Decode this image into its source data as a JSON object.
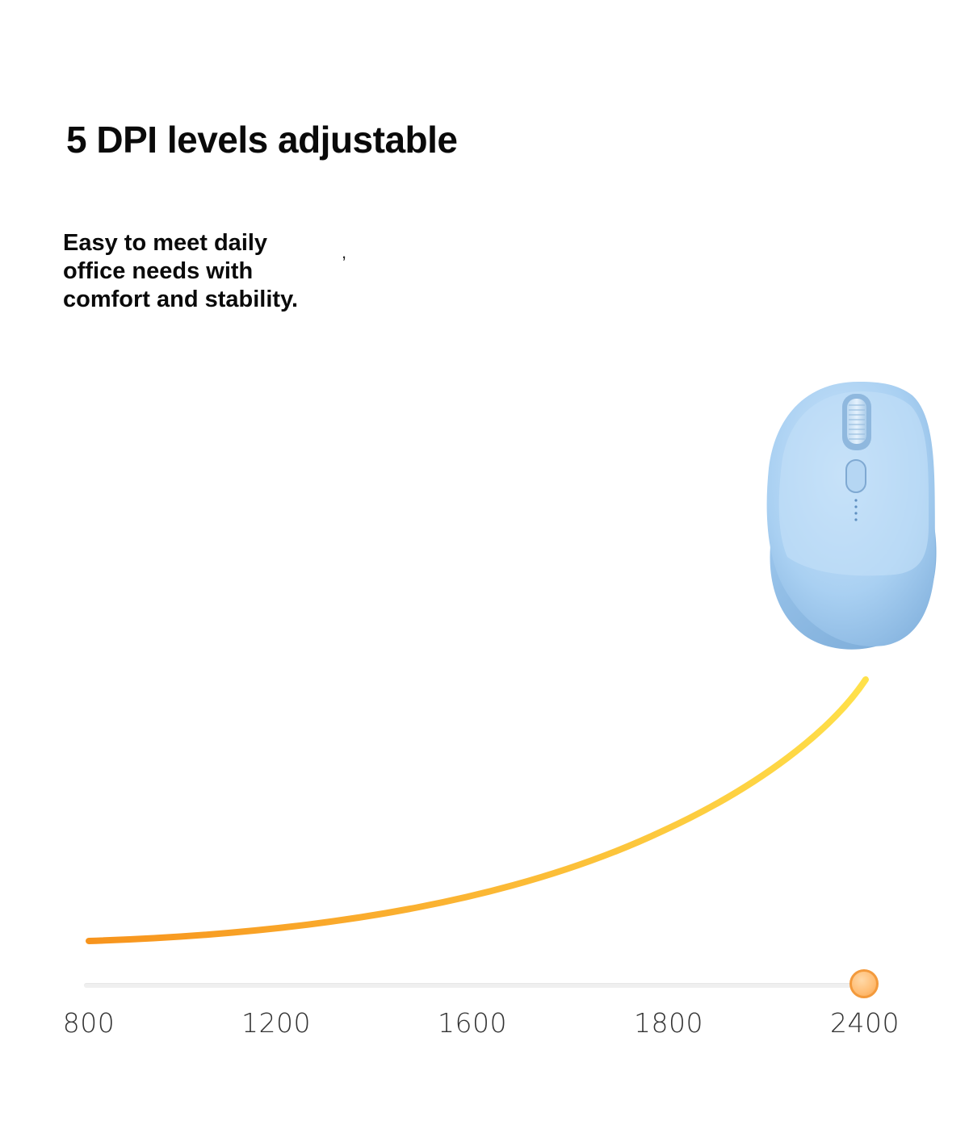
{
  "headline": "5 DPI levels adjustable",
  "subtext": {
    "line1": "Easy to meet daily",
    "line2": "office needs with",
    "line3": "comfort and stability.",
    "stray_mark": ","
  },
  "product": {
    "name": "wireless-mouse",
    "color": "#9cc6ec"
  },
  "dpi_selector": {
    "levels": [
      "800",
      "1200",
      "1600",
      "1800",
      "2400"
    ],
    "selected": "2400",
    "selected_index": 4
  },
  "colors": {
    "curve_start": "#f7941d",
    "curve_end": "#ffe14a",
    "knob": "#ffbd74"
  }
}
